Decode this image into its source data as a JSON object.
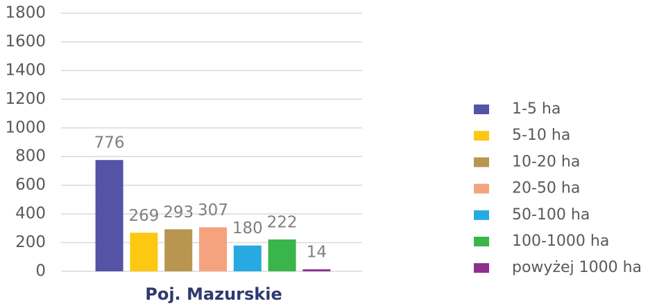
{
  "chart_data": {
    "type": "bar",
    "categories": [
      "Poj. Mazurskie"
    ],
    "series": [
      {
        "name": "1-5 ha",
        "color": "#5553a6",
        "values": [
          776
        ]
      },
      {
        "name": "5-10 ha",
        "color": "#fcc812",
        "values": [
          269
        ]
      },
      {
        "name": "10-20 ha",
        "color": "#b8964f",
        "values": [
          293
        ]
      },
      {
        "name": "20-50 ha",
        "color": "#f5a37f",
        "values": [
          307
        ]
      },
      {
        "name": "50-100 ha",
        "color": "#27aae1",
        "values": [
          180
        ]
      },
      {
        "name": "100-1000 ha",
        "color": "#3ab54a",
        "values": [
          222
        ]
      },
      {
        "name": "powyżej 1000 ha",
        "color": "#8d2f8f",
        "values": [
          14
        ]
      }
    ],
    "ylim": [
      0,
      1800
    ],
    "yticks": [
      0,
      200,
      400,
      600,
      800,
      1000,
      1200,
      1400,
      1600,
      1800
    ],
    "grid": true,
    "legend": "right",
    "data_labels": true
  }
}
